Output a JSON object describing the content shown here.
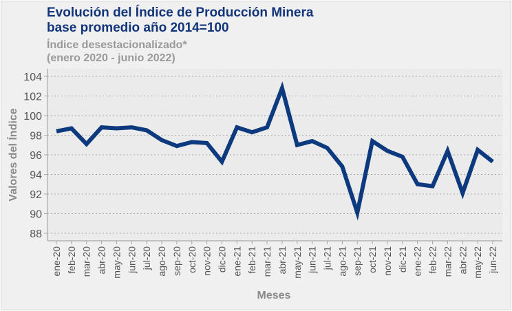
{
  "chart_data": {
    "type": "line",
    "title": "Evolución del Índice de Producción Minera",
    "title_line2": "base promedio año 2014=100",
    "subtitle": "Índice desestacionalizado*",
    "subtitle_line2": "(enero 2020 - junio 2022)",
    "xlabel": "Meses",
    "ylabel": "Valores del Índice",
    "ylim": [
      87,
      105
    ],
    "yticks": [
      88,
      90,
      92,
      94,
      96,
      98,
      100,
      102,
      104
    ],
    "grid": true,
    "line_color": "#0d3a7e",
    "categories": [
      "ene-20",
      "feb-20",
      "mar-20",
      "abr-20",
      "may-20",
      "jun-20",
      "jul-20",
      "ago-20",
      "sep-20",
      "oct-20",
      "nov-20",
      "dic-20",
      "ene-21",
      "feb-21",
      "mar-21",
      "abr-21",
      "may-21",
      "jun-21",
      "jul-21",
      "ago-21",
      "sep-21",
      "oct-21",
      "nov-21",
      "dic-21",
      "ene-22",
      "feb-22",
      "mar-22",
      "abr-22",
      "may-22",
      "jun-22"
    ],
    "values": [
      98.4,
      98.7,
      97.1,
      98.8,
      98.7,
      98.8,
      98.5,
      97.5,
      96.9,
      97.3,
      97.2,
      95.3,
      98.8,
      98.3,
      98.8,
      102.8,
      97.0,
      97.4,
      96.7,
      94.8,
      90.1,
      97.4,
      96.4,
      95.8,
      93.0,
      92.8,
      96.4,
      92.1,
      96.5,
      95.3
    ]
  }
}
